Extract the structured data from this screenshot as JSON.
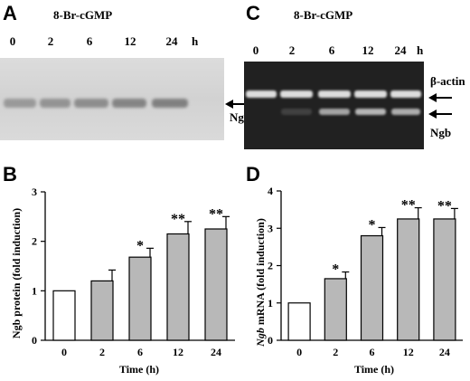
{
  "panels": {
    "A": {
      "letter": "A",
      "treatment": "8-Br-cGMP",
      "lanes": [
        "0",
        "2",
        "6",
        "12",
        "24"
      ],
      "time_unit": "h",
      "band_label": "Ngb"
    },
    "B": {
      "letter": "B"
    },
    "C": {
      "letter": "C",
      "treatment": "8-Br-cGMP",
      "lanes": [
        "0",
        "2",
        "6",
        "12",
        "24"
      ],
      "time_unit": "h",
      "band_labels": [
        "β-actin",
        "Ngb"
      ]
    },
    "D": {
      "letter": "D"
    }
  },
  "chart_data": [
    {
      "panel": "B",
      "type": "bar",
      "categories": [
        "0",
        "2",
        "6",
        "12",
        "24"
      ],
      "values": [
        1.0,
        1.2,
        1.68,
        2.15,
        2.25
      ],
      "errors": [
        0.0,
        0.22,
        0.18,
        0.25,
        0.25
      ],
      "significance": [
        "",
        "",
        "*",
        "**",
        "**"
      ],
      "bar_colors": [
        "#ffffff",
        "#b8b8b8",
        "#b8b8b8",
        "#b8b8b8",
        "#b8b8b8"
      ],
      "xlabel": "Time (h)",
      "ylabel": "Ngb protein (fold induction)",
      "ylim": [
        0,
        3
      ],
      "yticks": [
        "0",
        "1",
        "2",
        "3"
      ]
    },
    {
      "panel": "D",
      "type": "bar",
      "categories": [
        "0",
        "2",
        "6",
        "12",
        "24"
      ],
      "values": [
        1.0,
        1.65,
        2.8,
        3.25,
        3.25
      ],
      "errors": [
        0.0,
        0.18,
        0.22,
        0.3,
        0.28
      ],
      "significance": [
        "",
        "*",
        "*",
        "**",
        "**"
      ],
      "bar_colors": [
        "#ffffff",
        "#b8b8b8",
        "#b8b8b8",
        "#b8b8b8",
        "#b8b8b8"
      ],
      "xlabel": "Time (h)",
      "ylabel_italic": "Ngb",
      "ylabel": " mRNA (fold induction)",
      "ylim": [
        0,
        4
      ],
      "yticks": [
        "0",
        "1",
        "2",
        "3",
        "4"
      ]
    }
  ]
}
